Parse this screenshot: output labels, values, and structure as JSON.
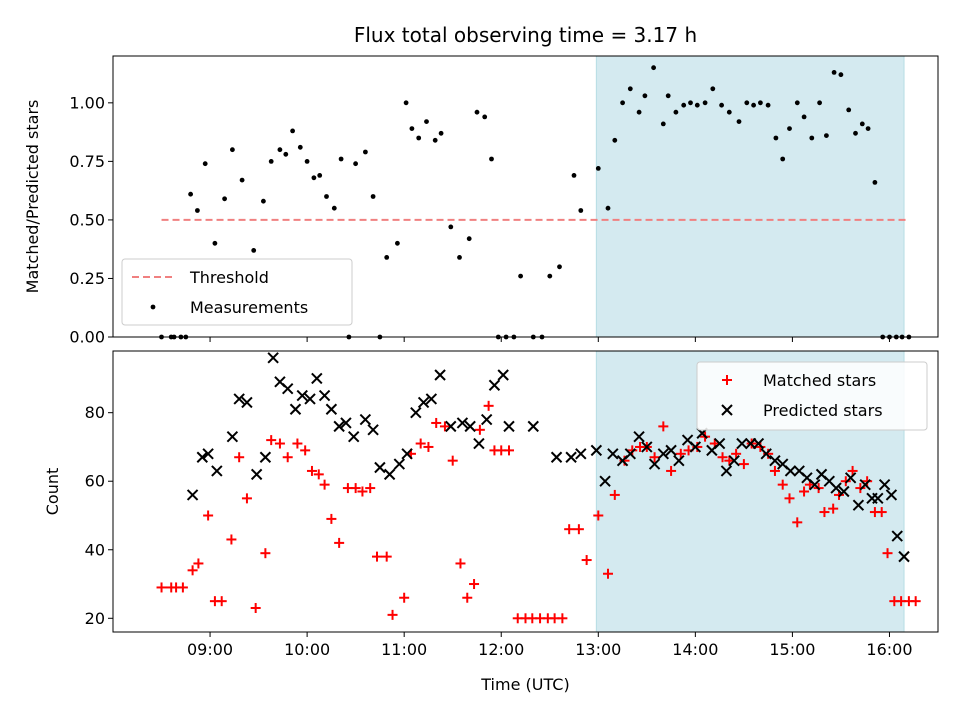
{
  "chart_data": [
    {
      "type": "scatter",
      "title": "Flux total observing time = 3.17 h",
      "xlabel": "",
      "ylabel": "Matched/Predicted stars",
      "ylim": [
        0,
        1.2
      ],
      "yticks": [
        0.0,
        0.25,
        0.5,
        0.75,
        1.0
      ],
      "ytick_labels": [
        "0.00",
        "0.25",
        "0.50",
        "0.75",
        "1.00"
      ],
      "xlim_hours": [
        8.0,
        16.5
      ],
      "shaded_interval_hours": [
        12.98,
        16.15
      ],
      "shade_color": "#d4eaf0",
      "threshold": {
        "name": "Threshold",
        "value": 0.5,
        "x_start_hours": 8.5,
        "x_end_hours": 16.2,
        "color": "#f08080"
      },
      "legend": {
        "location": "lower left",
        "entries": [
          "Threshold",
          "Measurements"
        ]
      },
      "series": [
        {
          "name": "Measurements",
          "color": "#000000",
          "marker": "dot",
          "x": [
            8.5,
            8.6,
            8.63,
            8.7,
            8.75,
            8.8,
            8.87,
            8.95,
            9.05,
            9.15,
            9.23,
            9.33,
            9.45,
            9.55,
            9.63,
            9.72,
            9.78,
            9.85,
            9.93,
            10.0,
            10.07,
            10.13,
            10.2,
            10.28,
            10.35,
            10.43,
            10.5,
            10.6,
            10.68,
            10.75,
            10.82,
            10.93,
            11.02,
            11.08,
            11.15,
            11.23,
            11.32,
            11.38,
            11.48,
            11.57,
            11.67,
            11.75,
            11.83,
            11.9,
            11.97,
            12.05,
            12.13,
            12.2,
            12.33,
            12.42,
            12.5,
            12.6,
            12.75,
            12.82,
            13.0,
            13.1,
            13.17,
            13.25,
            13.33,
            13.42,
            13.48,
            13.57,
            13.67,
            13.72,
            13.8,
            13.88,
            13.95,
            14.02,
            14.1,
            14.18,
            14.27,
            14.35,
            14.45,
            14.53,
            14.6,
            14.67,
            14.75,
            14.83,
            14.9,
            14.97,
            15.05,
            15.12,
            15.2,
            15.28,
            15.35,
            15.43,
            15.5,
            15.58,
            15.65,
            15.72,
            15.78,
            15.85,
            15.93,
            16.0,
            16.07,
            16.13,
            16.2
          ],
          "y": [
            0.0,
            0.0,
            0.0,
            0.0,
            0.0,
            0.61,
            0.54,
            0.74,
            0.4,
            0.59,
            0.8,
            0.67,
            0.37,
            0.58,
            0.75,
            0.8,
            0.78,
            0.88,
            0.81,
            0.75,
            0.68,
            0.69,
            0.6,
            0.55,
            0.76,
            0.0,
            0.74,
            0.79,
            0.6,
            0.0,
            0.34,
            0.4,
            1.0,
            0.89,
            0.85,
            0.92,
            0.84,
            0.87,
            0.47,
            0.34,
            0.42,
            0.96,
            0.94,
            0.76,
            0.0,
            0.0,
            0.0,
            0.26,
            0.0,
            0.0,
            0.26,
            0.3,
            0.69,
            0.54,
            0.72,
            0.55,
            0.84,
            1.0,
            1.06,
            0.96,
            1.03,
            1.15,
            0.91,
            1.03,
            0.96,
            0.99,
            1.0,
            0.99,
            1.0,
            1.06,
            0.99,
            0.96,
            0.92,
            1.0,
            0.99,
            1.0,
            0.99,
            0.85,
            0.76,
            0.89,
            1.0,
            0.94,
            0.85,
            1.0,
            0.86,
            1.13,
            1.12,
            0.97,
            0.87,
            0.91,
            0.89,
            0.66,
            0.0,
            0.0,
            0.0,
            0.0,
            0.0
          ],
          "y_kept_note": ""
        }
      ]
    },
    {
      "type": "scatter",
      "title": "",
      "xlabel": "Time (UTC)",
      "ylabel": "Count",
      "ylim": [
        16,
        98
      ],
      "yticks": [
        20,
        40,
        60,
        80
      ],
      "ytick_labels": [
        "20",
        "40",
        "60",
        "80"
      ],
      "xlim_hours": [
        8.0,
        16.5
      ],
      "xticks_hours": [
        9,
        10,
        11,
        12,
        13,
        14,
        15,
        16
      ],
      "xtick_labels": [
        "09:00",
        "10:00",
        "11:00",
        "12:00",
        "13:00",
        "14:00",
        "15:00",
        "16:00"
      ],
      "shaded_interval_hours": [
        12.98,
        16.15
      ],
      "shade_color": "#d4eaf0",
      "legend": {
        "location": "upper right",
        "entries": [
          "Matched stars",
          "Predicted stars"
        ]
      },
      "series": [
        {
          "name": "Matched stars",
          "color": "#ff0000",
          "marker": "plus",
          "x": [
            8.5,
            8.6,
            8.65,
            8.72,
            8.82,
            8.88,
            8.98,
            9.05,
            9.12,
            9.22,
            9.3,
            9.38,
            9.47,
            9.57,
            9.63,
            9.72,
            9.8,
            9.9,
            9.98,
            10.05,
            10.12,
            10.18,
            10.25,
            10.33,
            10.42,
            10.5,
            10.57,
            10.65,
            10.72,
            10.82,
            10.88,
            11.0,
            11.07,
            11.17,
            11.25,
            11.33,
            11.42,
            11.5,
            11.58,
            11.65,
            11.72,
            11.78,
            11.87,
            11.93,
            12.0,
            12.08,
            12.17,
            12.25,
            12.32,
            12.4,
            12.48,
            12.55,
            12.63,
            12.7,
            12.8,
            12.88,
            13.0,
            13.1,
            13.17,
            13.27,
            13.35,
            13.43,
            13.5,
            13.58,
            13.67,
            13.75,
            13.85,
            13.93,
            14.02,
            14.1,
            14.2,
            14.28,
            14.35,
            14.42,
            14.5,
            14.58,
            14.67,
            14.75,
            14.82,
            14.9,
            14.97,
            15.05,
            15.12,
            15.18,
            15.27,
            15.33,
            15.42,
            15.48,
            15.55,
            15.62,
            15.7,
            15.77,
            15.85,
            15.92,
            15.98,
            16.05,
            16.12,
            16.2,
            16.27
          ],
          "y": [
            29,
            29,
            29,
            29,
            34,
            36,
            50,
            25,
            25,
            43,
            67,
            55,
            23,
            39,
            72,
            71,
            67,
            71,
            69,
            63,
            62,
            59,
            49,
            42,
            58,
            58,
            57,
            58,
            38,
            38,
            21,
            26,
            68,
            71,
            70,
            77,
            76,
            66,
            36,
            26,
            30,
            75,
            82,
            69,
            69,
            69,
            20,
            20,
            20,
            20,
            20,
            20,
            20,
            46,
            46,
            37,
            50,
            33,
            56,
            66,
            69,
            70,
            70,
            67,
            76,
            63,
            68,
            69,
            70,
            73,
            71,
            67,
            66,
            68,
            65,
            71,
            70,
            68,
            63,
            59,
            55,
            48,
            57,
            59,
            58,
            51,
            52,
            56,
            60,
            63,
            58,
            60,
            51,
            51,
            39,
            25,
            25,
            25,
            25
          ],
          "y_kept_note": ""
        },
        {
          "name": "Predicted stars",
          "color": "#000000",
          "marker": "x",
          "x": [
            8.82,
            8.92,
            8.98,
            9.07,
            9.23,
            9.3,
            9.38,
            9.48,
            9.57,
            9.65,
            9.72,
            9.8,
            9.88,
            9.95,
            10.03,
            10.1,
            10.18,
            10.25,
            10.33,
            10.4,
            10.48,
            10.6,
            10.68,
            10.75,
            10.85,
            10.95,
            11.03,
            11.12,
            11.2,
            11.28,
            11.37,
            11.48,
            11.6,
            11.68,
            11.77,
            11.85,
            11.93,
            12.02,
            12.08,
            12.33,
            12.57,
            12.72,
            12.82,
            12.98,
            13.07,
            13.15,
            13.25,
            13.33,
            13.42,
            13.5,
            13.58,
            13.67,
            13.75,
            13.83,
            13.92,
            14.0,
            14.07,
            14.17,
            14.25,
            14.32,
            14.4,
            14.48,
            14.57,
            14.65,
            14.73,
            14.82,
            14.9,
            14.98,
            15.07,
            15.15,
            15.23,
            15.3,
            15.38,
            15.45,
            15.53,
            15.6,
            15.68,
            15.75,
            15.82,
            15.88,
            15.95,
            16.02,
            16.08,
            16.15
          ],
          "y": [
            56,
            67,
            68,
            63,
            73,
            84,
            83,
            62,
            67,
            96,
            89,
            87,
            81,
            85,
            84,
            90,
            85,
            81,
            76,
            77,
            73,
            78,
            75,
            64,
            62,
            65,
            68,
            80,
            83,
            84,
            91,
            76,
            77,
            76,
            71,
            78,
            88,
            91,
            76,
            76,
            67,
            67,
            68,
            69,
            60,
            68,
            66,
            68,
            73,
            70,
            65,
            68,
            69,
            66,
            72,
            70,
            74,
            69,
            71,
            63,
            66,
            71,
            71,
            71,
            68,
            66,
            65,
            63,
            63,
            61,
            59,
            62,
            60,
            58,
            57,
            61,
            53,
            59,
            55,
            55,
            59,
            56,
            44,
            38
          ],
          "y_kept_note": ""
        }
      ]
    }
  ],
  "shared": {
    "xlabel": "Time (UTC)"
  }
}
